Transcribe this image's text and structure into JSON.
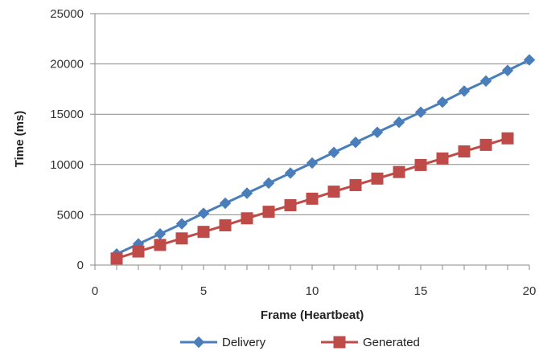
{
  "chart_data": {
    "type": "line",
    "xlabel": "Frame (Heartbeat)",
    "ylabel": "Time (ms)",
    "xlim": [
      0,
      20
    ],
    "ylim": [
      0,
      25000
    ],
    "x_ticks": [
      0,
      5,
      10,
      15,
      20
    ],
    "y_ticks": [
      0,
      5000,
      10000,
      15000,
      20000,
      25000
    ],
    "grid": "horizontal",
    "legend_position": "bottom",
    "series": [
      {
        "name": "Delivery",
        "color": "#4a7ebb",
        "marker": "diamond",
        "x": [
          1,
          2,
          3,
          4,
          5,
          6,
          7,
          8,
          9,
          10,
          11,
          12,
          13,
          14,
          15,
          16,
          17,
          18,
          19,
          20
        ],
        "y": [
          1100,
          2100,
          3100,
          4100,
          5150,
          6150,
          7150,
          8150,
          9150,
          10150,
          11200,
          12200,
          13200,
          14200,
          15200,
          16200,
          17300,
          18300,
          19350,
          20400
        ]
      },
      {
        "name": "Generated",
        "color": "#be4b48",
        "marker": "square",
        "x": [
          1,
          2,
          3,
          4,
          5,
          6,
          7,
          8,
          9,
          10,
          11,
          12,
          13,
          14,
          15,
          16,
          17,
          18,
          19
        ],
        "y": [
          650,
          1350,
          2000,
          2650,
          3300,
          3950,
          4650,
          5300,
          5950,
          6600,
          7300,
          7950,
          8600,
          9250,
          9950,
          10600,
          11300,
          11950,
          12600
        ]
      }
    ]
  }
}
